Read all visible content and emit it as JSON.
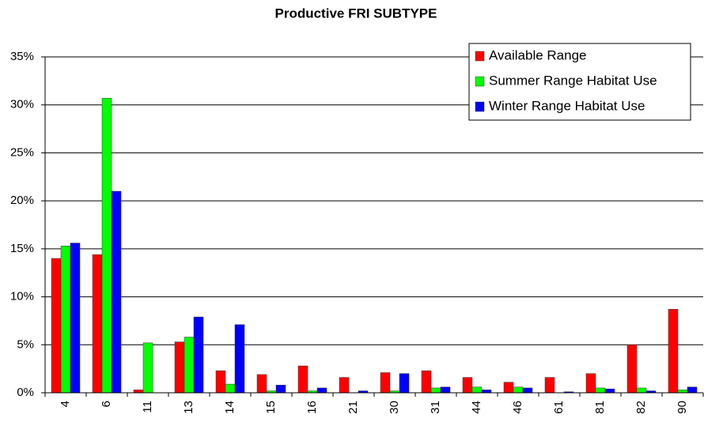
{
  "chart_data": {
    "type": "bar",
    "title": "Productive FRI SUBTYPE",
    "categories": [
      "4",
      "6",
      "11",
      "13",
      "14",
      "15",
      "16",
      "21",
      "30",
      "31",
      "44",
      "46",
      "61",
      "81",
      "82",
      "90"
    ],
    "series": [
      {
        "name": "Available Range",
        "color": "#ff0000",
        "values": [
          14.0,
          14.4,
          0.3,
          5.3,
          2.3,
          1.9,
          2.8,
          1.6,
          2.1,
          2.3,
          1.6,
          1.1,
          1.6,
          2.0,
          5.0,
          8.7
        ]
      },
      {
        "name": "Summer Range Habitat Use",
        "color": "#00ff00",
        "values": [
          15.3,
          30.7,
          5.2,
          5.8,
          0.9,
          0.2,
          0.2,
          0,
          0.2,
          0.5,
          0.6,
          0.6,
          0,
          0.5,
          0.5,
          0.3
        ]
      },
      {
        "name": "Winter Range Habitat Use",
        "color": "#0000ff",
        "values": [
          15.6,
          21.0,
          0,
          7.9,
          7.1,
          0.8,
          0.5,
          0.2,
          2.0,
          0.6,
          0.3,
          0.5,
          0.1,
          0.4,
          0.2,
          0.6
        ]
      }
    ],
    "ylim": [
      0,
      35
    ],
    "yticks": [
      {
        "value": 0,
        "label": "0%"
      },
      {
        "value": 5,
        "label": "5%"
      },
      {
        "value": 10,
        "label": "10%"
      },
      {
        "value": 15,
        "label": "15%"
      },
      {
        "value": 20,
        "label": "20%"
      },
      {
        "value": 25,
        "label": "25%"
      },
      {
        "value": 30,
        "label": "30%"
      },
      {
        "value": 35,
        "label": "35%"
      }
    ],
    "grid": true,
    "legend": "top-right"
  }
}
